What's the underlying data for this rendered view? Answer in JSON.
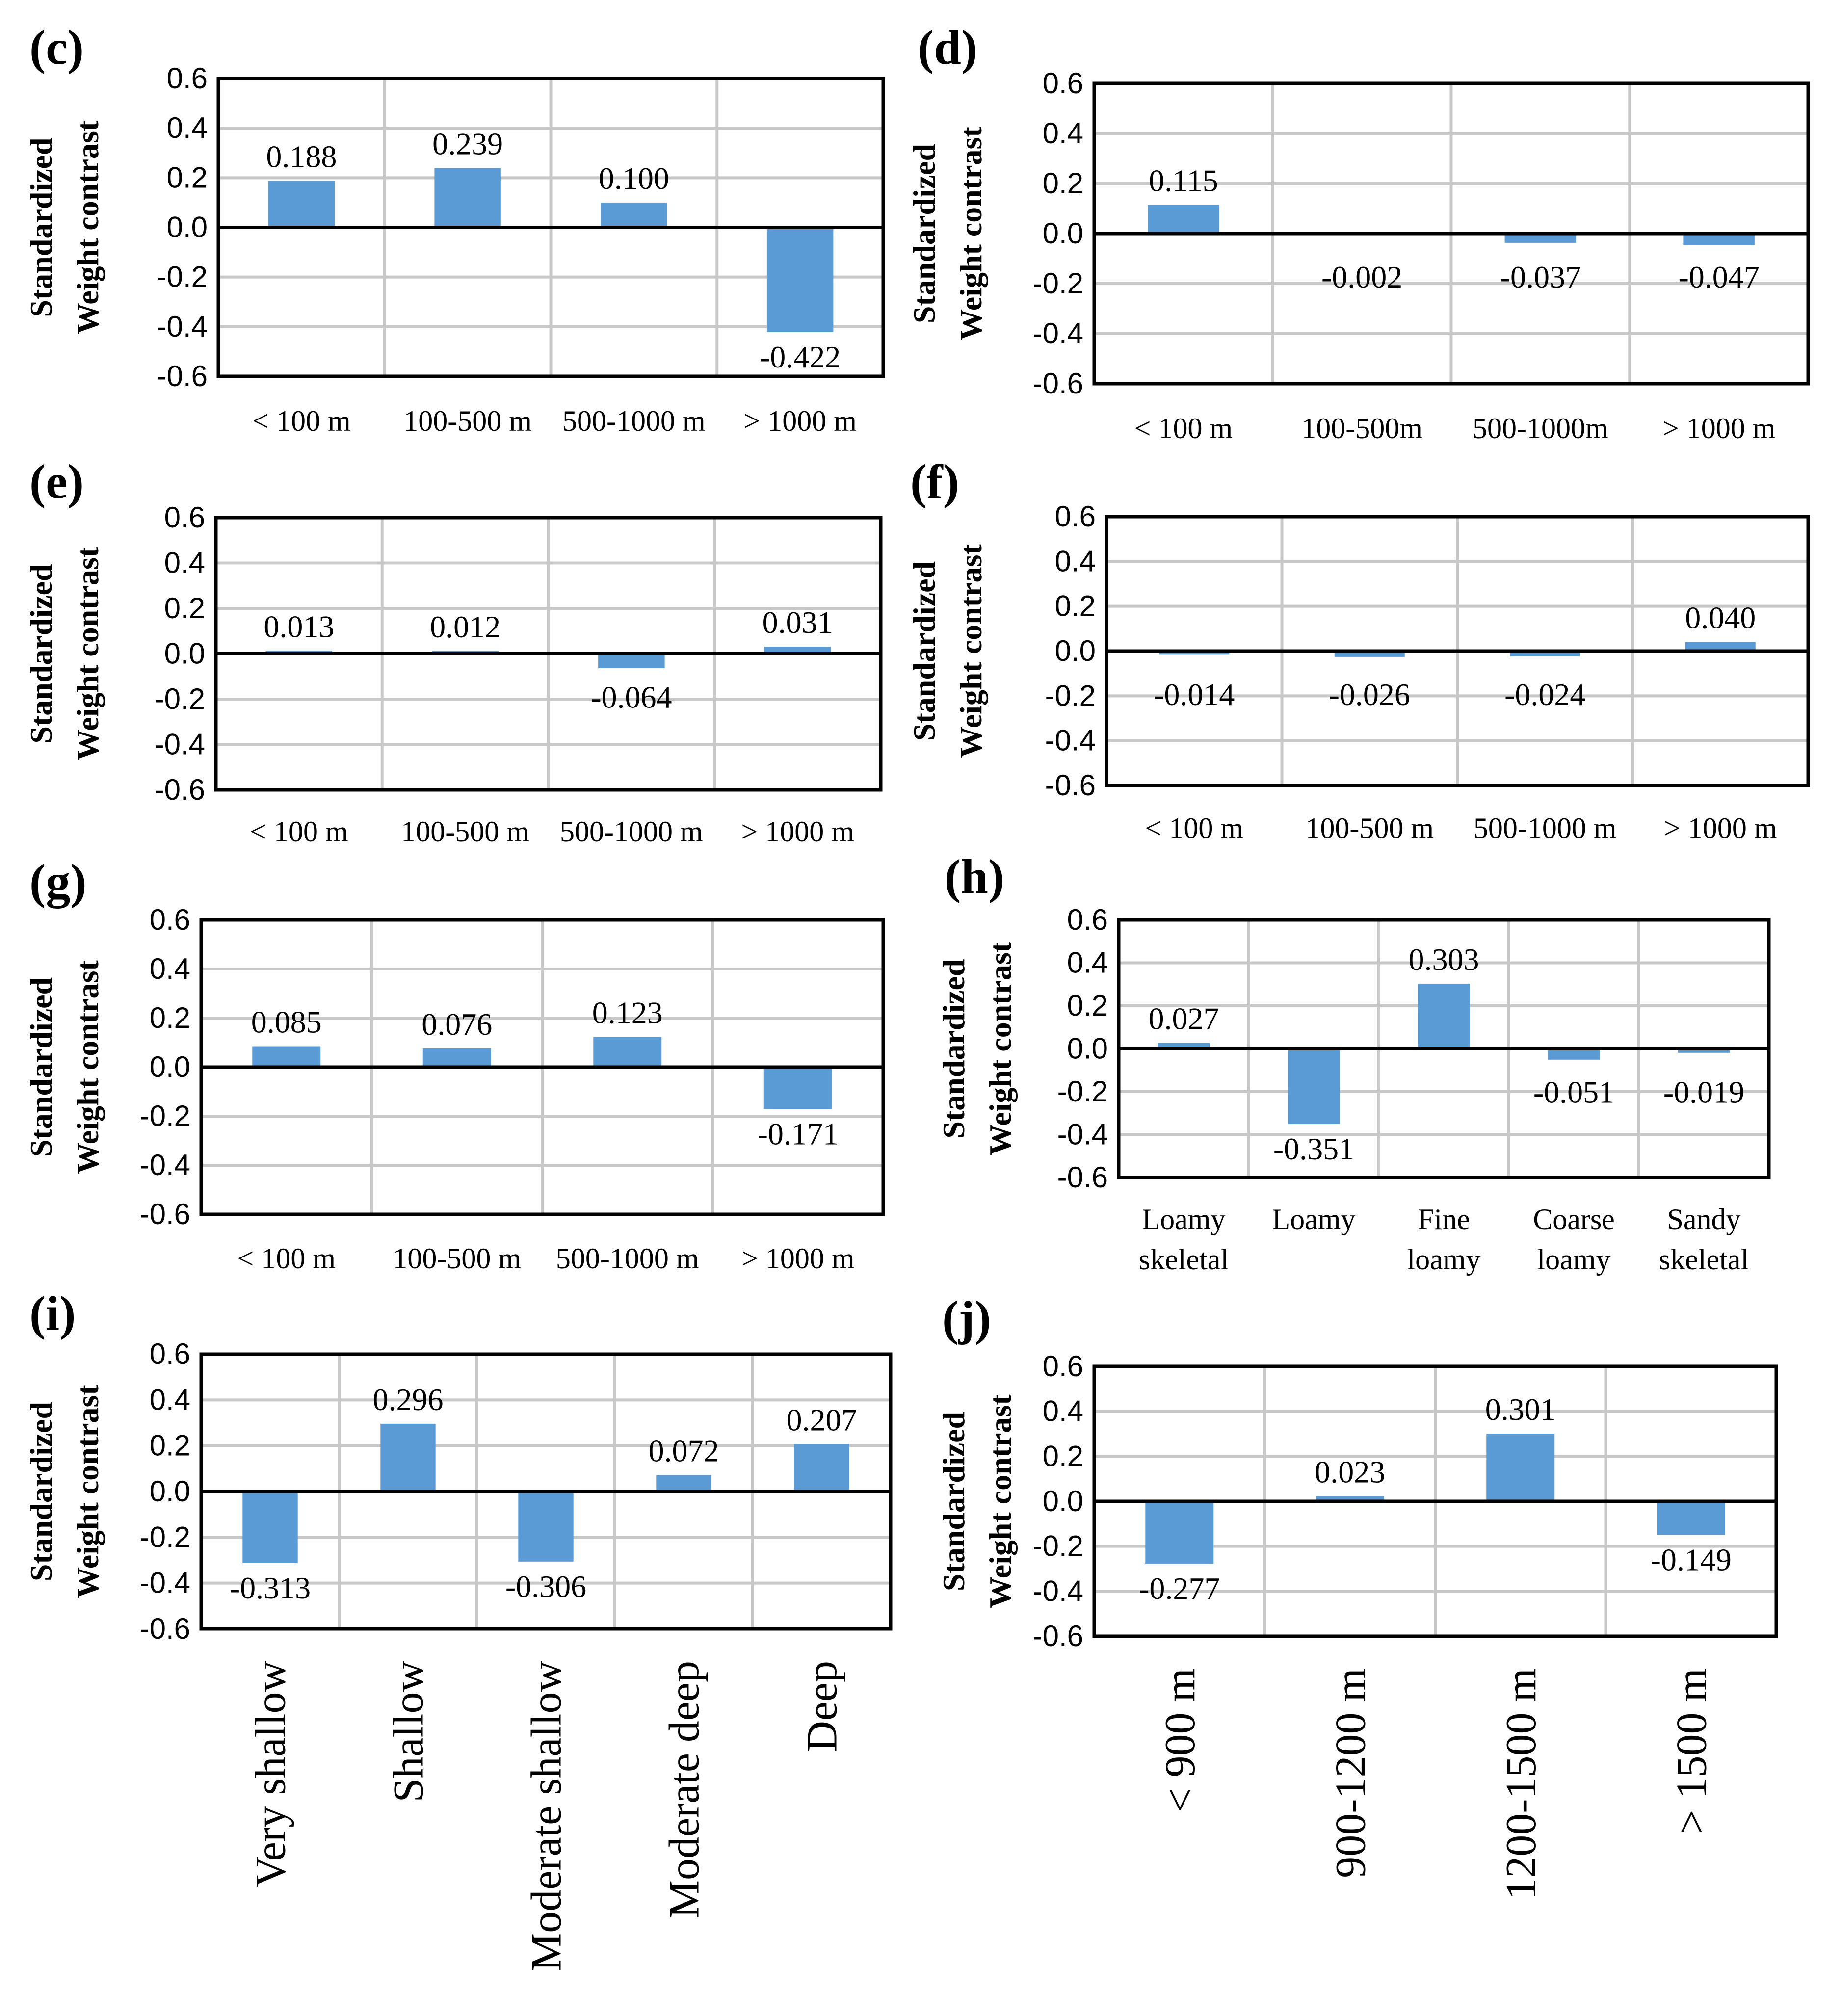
{
  "figure": {
    "colors": {
      "bar": "#5b9bd5",
      "grid": "#c8c8c8",
      "axis": "#000000"
    }
  },
  "chart_data": [
    {
      "id": "c",
      "panel_label": "(c)",
      "type": "bar",
      "ylabel": [
        "Standardized",
        "Weight contrast"
      ],
      "yticks": [
        "0.6",
        "0.4",
        "0.2",
        "0.0",
        "-0.2",
        "-0.4",
        "-0.6"
      ],
      "ylim": [
        -0.6,
        0.6
      ],
      "categories": [
        "< 100 m",
        "100-500 m",
        "500-1000 m",
        "> 1000 m"
      ],
      "values": [
        0.188,
        0.239,
        0.1,
        -0.422
      ],
      "value_labels": [
        "0.188",
        "0.239",
        "0.100",
        "-0.422"
      ]
    },
    {
      "id": "d",
      "panel_label": "(d)",
      "type": "bar",
      "ylabel": [
        "Standardized",
        "Weight contrast"
      ],
      "yticks": [
        "0.6",
        "0.4",
        "0.2",
        "0.0",
        "-0.2",
        "-0.4",
        "-0.6"
      ],
      "ylim": [
        -0.6,
        0.6
      ],
      "categories": [
        "< 100 m",
        "100-500m",
        "500-1000m",
        "> 1000 m"
      ],
      "values": [
        0.115,
        -0.002,
        -0.037,
        -0.047
      ],
      "value_labels": [
        "0.115",
        "-0.002",
        "-0.037",
        "-0.047"
      ]
    },
    {
      "id": "e",
      "panel_label": "(e)",
      "type": "bar",
      "ylabel": [
        "Standardized",
        "Weight contrast"
      ],
      "yticks": [
        "0.6",
        "0.4",
        "0.2",
        "0.0",
        "-0.2",
        "-0.4",
        "-0.6"
      ],
      "ylim": [
        -0.6,
        0.6
      ],
      "categories": [
        "< 100 m",
        "100-500 m",
        "500-1000 m",
        "> 1000 m"
      ],
      "values": [
        0.013,
        0.012,
        -0.064,
        0.031
      ],
      "value_labels": [
        "0.013",
        "0.012",
        "-0.064",
        "0.031"
      ]
    },
    {
      "id": "f",
      "panel_label": "(f)",
      "type": "bar",
      "ylabel": [
        "Standardized",
        "Weight contrast"
      ],
      "yticks": [
        "0.6",
        "0.4",
        "0.2",
        "0.0",
        "-0.2",
        "-0.4",
        "-0.6"
      ],
      "ylim": [
        -0.6,
        0.6
      ],
      "categories": [
        "< 100 m",
        "100-500 m",
        "500-1000 m",
        "> 1000 m"
      ],
      "values": [
        -0.014,
        -0.026,
        -0.024,
        0.04
      ],
      "value_labels": [
        "-0.014",
        "-0.026",
        "-0.024",
        "0.040"
      ]
    },
    {
      "id": "g",
      "panel_label": "(g)",
      "type": "bar",
      "ylabel": [
        "Standardized",
        "Weight contrast"
      ],
      "yticks": [
        "0.6",
        "0.4",
        "0.2",
        "0.0",
        "-0.2",
        "-0.4",
        "-0.6"
      ],
      "ylim": [
        -0.6,
        0.6
      ],
      "categories": [
        "< 100 m",
        "100-500 m",
        "500-1000 m",
        "> 1000 m"
      ],
      "values": [
        0.085,
        0.076,
        0.123,
        -0.171
      ],
      "value_labels": [
        "0.085",
        "0.076",
        "0.123",
        "-0.171"
      ]
    },
    {
      "id": "h",
      "panel_label": "(h)",
      "type": "bar",
      "ylabel": [
        "Standardized",
        "Weight contrast"
      ],
      "yticks": [
        "0.6",
        "0.4",
        "0.2",
        "0.0",
        "-0.2",
        "-0.4",
        "-0.6"
      ],
      "ylim": [
        -0.6,
        0.6
      ],
      "categories": [
        [
          "Loamy",
          "skeletal"
        ],
        [
          "Loamy"
        ],
        [
          "Fine",
          "loamy"
        ],
        [
          "Coarse",
          "loamy"
        ],
        [
          "Sandy",
          "skeletal"
        ]
      ],
      "values": [
        0.027,
        -0.351,
        0.303,
        -0.051,
        -0.019
      ],
      "value_labels": [
        "0.027",
        "-0.351",
        "0.303",
        "-0.051",
        "-0.019"
      ]
    },
    {
      "id": "i",
      "panel_label": "(i)",
      "type": "bar",
      "ylabel": [
        "Standardized",
        "Weight contrast"
      ],
      "yticks": [
        "0.6",
        "0.4",
        "0.2",
        "0.0",
        "-0.2",
        "-0.4",
        "-0.6"
      ],
      "ylim": [
        -0.6,
        0.6
      ],
      "categories": [
        "Very shallow",
        "Shallow",
        "Moderate shallow",
        "Moderate deep",
        "Deep"
      ],
      "values": [
        -0.313,
        0.296,
        -0.306,
        0.072,
        0.207
      ],
      "value_labels": [
        "-0.313",
        "0.296",
        "-0.306",
        "0.072",
        "0.207"
      ]
    },
    {
      "id": "j",
      "panel_label": "(j)",
      "type": "bar",
      "ylabel": [
        "Standardized",
        "Weight contrast"
      ],
      "yticks": [
        "0.6",
        "0.4",
        "0.2",
        "0.0",
        "-0.2",
        "-0.4",
        "-0.6"
      ],
      "ylim": [
        -0.6,
        0.6
      ],
      "categories": [
        "< 900 m",
        "900-1200 m",
        "1200-1500 m",
        "> 1500 m"
      ],
      "values": [
        -0.277,
        0.023,
        0.301,
        -0.149
      ],
      "value_labels": [
        "-0.277",
        "0.023",
        "0.301",
        "-0.149"
      ]
    }
  ]
}
